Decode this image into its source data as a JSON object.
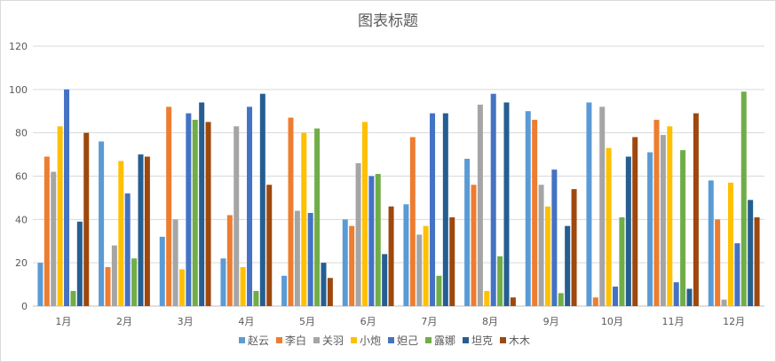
{
  "chart_data": {
    "type": "bar",
    "title": "图表标题",
    "categories": [
      "1月",
      "2月",
      "3月",
      "4月",
      "5月",
      "6月",
      "7月",
      "8月",
      "9月",
      "10月",
      "11月",
      "12月"
    ],
    "ylim": [
      0,
      120
    ],
    "yticks": [
      0,
      20,
      40,
      60,
      80,
      100,
      120
    ],
    "grid": true,
    "legend_position": "bottom",
    "series": [
      {
        "name": "赵云",
        "color": "#5b9bd5",
        "values": [
          20,
          76,
          32,
          22,
          14,
          40,
          47,
          68,
          90,
          94,
          71,
          58
        ]
      },
      {
        "name": "李白",
        "color": "#ed7d31",
        "values": [
          69,
          18,
          92,
          42,
          87,
          37,
          78,
          56,
          86,
          4,
          86,
          40
        ]
      },
      {
        "name": "关羽",
        "color": "#a5a5a5",
        "values": [
          62,
          28,
          40,
          83,
          44,
          66,
          33,
          93,
          56,
          92,
          79,
          3
        ]
      },
      {
        "name": "小炮",
        "color": "#ffc000",
        "values": [
          83,
          67,
          17,
          18,
          80,
          85,
          37,
          7,
          46,
          73,
          83,
          57
        ]
      },
      {
        "name": "妲己",
        "color": "#4472c4",
        "values": [
          100,
          52,
          89,
          92,
          43,
          60,
          89,
          98,
          63,
          9,
          11,
          29
        ]
      },
      {
        "name": "露娜",
        "color": "#70ad47",
        "values": [
          7,
          22,
          86,
          7,
          82,
          61,
          14,
          23,
          6,
          41,
          72,
          99
        ]
      },
      {
        "name": "坦克",
        "color": "#255e91",
        "values": [
          39,
          70,
          94,
          98,
          20,
          24,
          89,
          94,
          37,
          69,
          8,
          49
        ]
      },
      {
        "name": "木木",
        "color": "#9e480e",
        "values": [
          80,
          69,
          85,
          56,
          13,
          46,
          41,
          4,
          54,
          78,
          89,
          41
        ]
      }
    ]
  }
}
